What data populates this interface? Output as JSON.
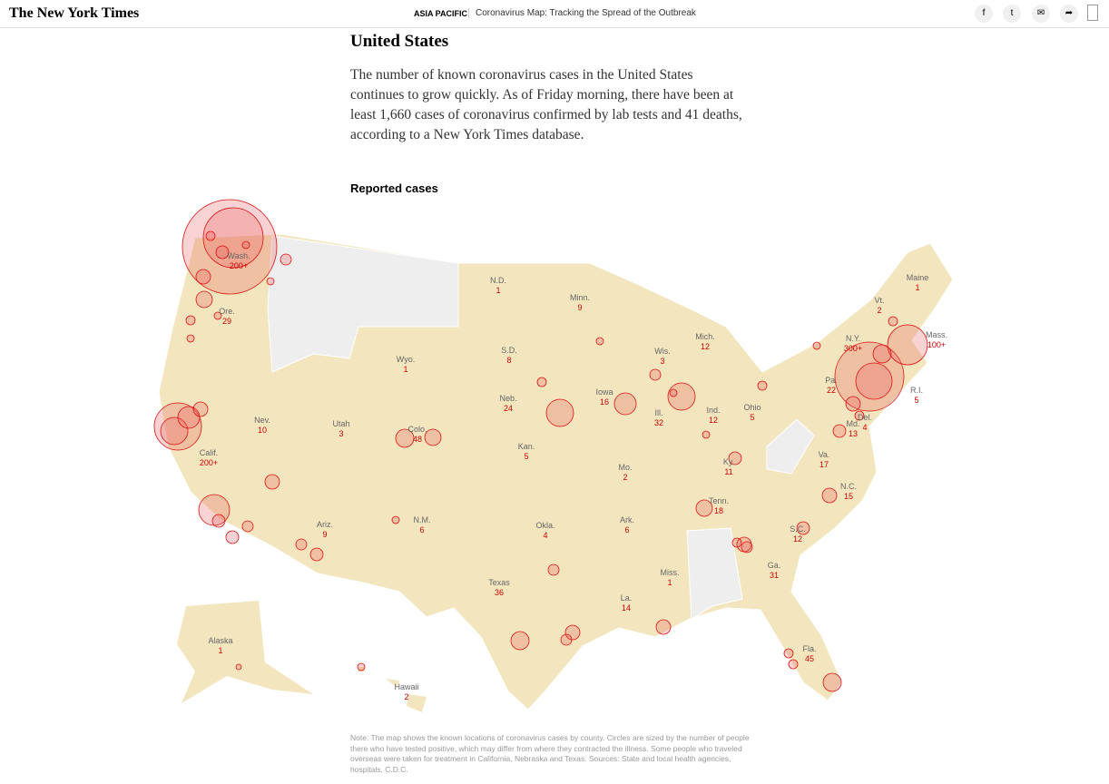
{
  "header": {
    "logo": "The New York Times",
    "section": "ASIA PACIFIC",
    "headline": "Coronavirus Map: Tracking the Spread of the Outbreak"
  },
  "article": {
    "heading": "United States",
    "paragraph": "The number of known coronavirus cases in the United States continues to grow quickly. As of Friday morning, there have been at least 1,660 cases of coronavirus confirmed by lab tests and 41 deaths, according to a New York Times database."
  },
  "map": {
    "title": "Reported cases",
    "states": [
      {
        "name": "Wash.",
        "cases": "200+"
      },
      {
        "name": "Ore.",
        "cases": 29
      },
      {
        "name": "Calif.",
        "cases": "200+"
      },
      {
        "name": "Nev.",
        "cases": 10
      },
      {
        "name": "Utah",
        "cases": 3
      },
      {
        "name": "Ariz.",
        "cases": 9
      },
      {
        "name": "Wyo.",
        "cases": 1
      },
      {
        "name": "Colo.",
        "cases": 48
      },
      {
        "name": "N.M.",
        "cases": 6
      },
      {
        "name": "N.D.",
        "cases": 1
      },
      {
        "name": "S.D.",
        "cases": 8
      },
      {
        "name": "Neb.",
        "cases": 24
      },
      {
        "name": "Kan.",
        "cases": 5
      },
      {
        "name": "Okla.",
        "cases": 4
      },
      {
        "name": "Texas",
        "cases": 36
      },
      {
        "name": "Minn.",
        "cases": 9
      },
      {
        "name": "Iowa",
        "cases": 16
      },
      {
        "name": "Mo.",
        "cases": 2
      },
      {
        "name": "Ark.",
        "cases": 6
      },
      {
        "name": "La.",
        "cases": 14
      },
      {
        "name": "Wis.",
        "cases": 3
      },
      {
        "name": "Ill.",
        "cases": 32
      },
      {
        "name": "Mich.",
        "cases": 12
      },
      {
        "name": "Ind.",
        "cases": 12
      },
      {
        "name": "Ohio",
        "cases": 5
      },
      {
        "name": "Ky.",
        "cases": 11
      },
      {
        "name": "Tenn.",
        "cases": 18
      },
      {
        "name": "Miss.",
        "cases": 1
      },
      {
        "name": "Ga.",
        "cases": 31
      },
      {
        "name": "S.C.",
        "cases": 12
      },
      {
        "name": "N.C.",
        "cases": 15
      },
      {
        "name": "Va.",
        "cases": 17
      },
      {
        "name": "Fla.",
        "cases": 45
      },
      {
        "name": "Pa.",
        "cases": 22
      },
      {
        "name": "N.Y.",
        "cases": "300+"
      },
      {
        "name": "Vt.",
        "cases": 2
      },
      {
        "name": "Maine",
        "cases": 1
      },
      {
        "name": "Mass.",
        "cases": "100+"
      },
      {
        "name": "R.I.",
        "cases": 5
      },
      {
        "name": "Del.",
        "cases": 4
      },
      {
        "name": "Md.",
        "cases": 13
      },
      {
        "name": "Alaska",
        "cases": 1
      },
      {
        "name": "Hawaii",
        "cases": 2
      }
    ],
    "note": "Note: The map shows the known locations of coronavirus cases by county. Circles are sized by the number of people there who have tested positive, which may differ from where they contracted the illness. Some people who traveled overseas were taken for treatment in California, Nebraska and Texas. Sources: State and local health agencies, hospitals, C.D.C."
  }
}
